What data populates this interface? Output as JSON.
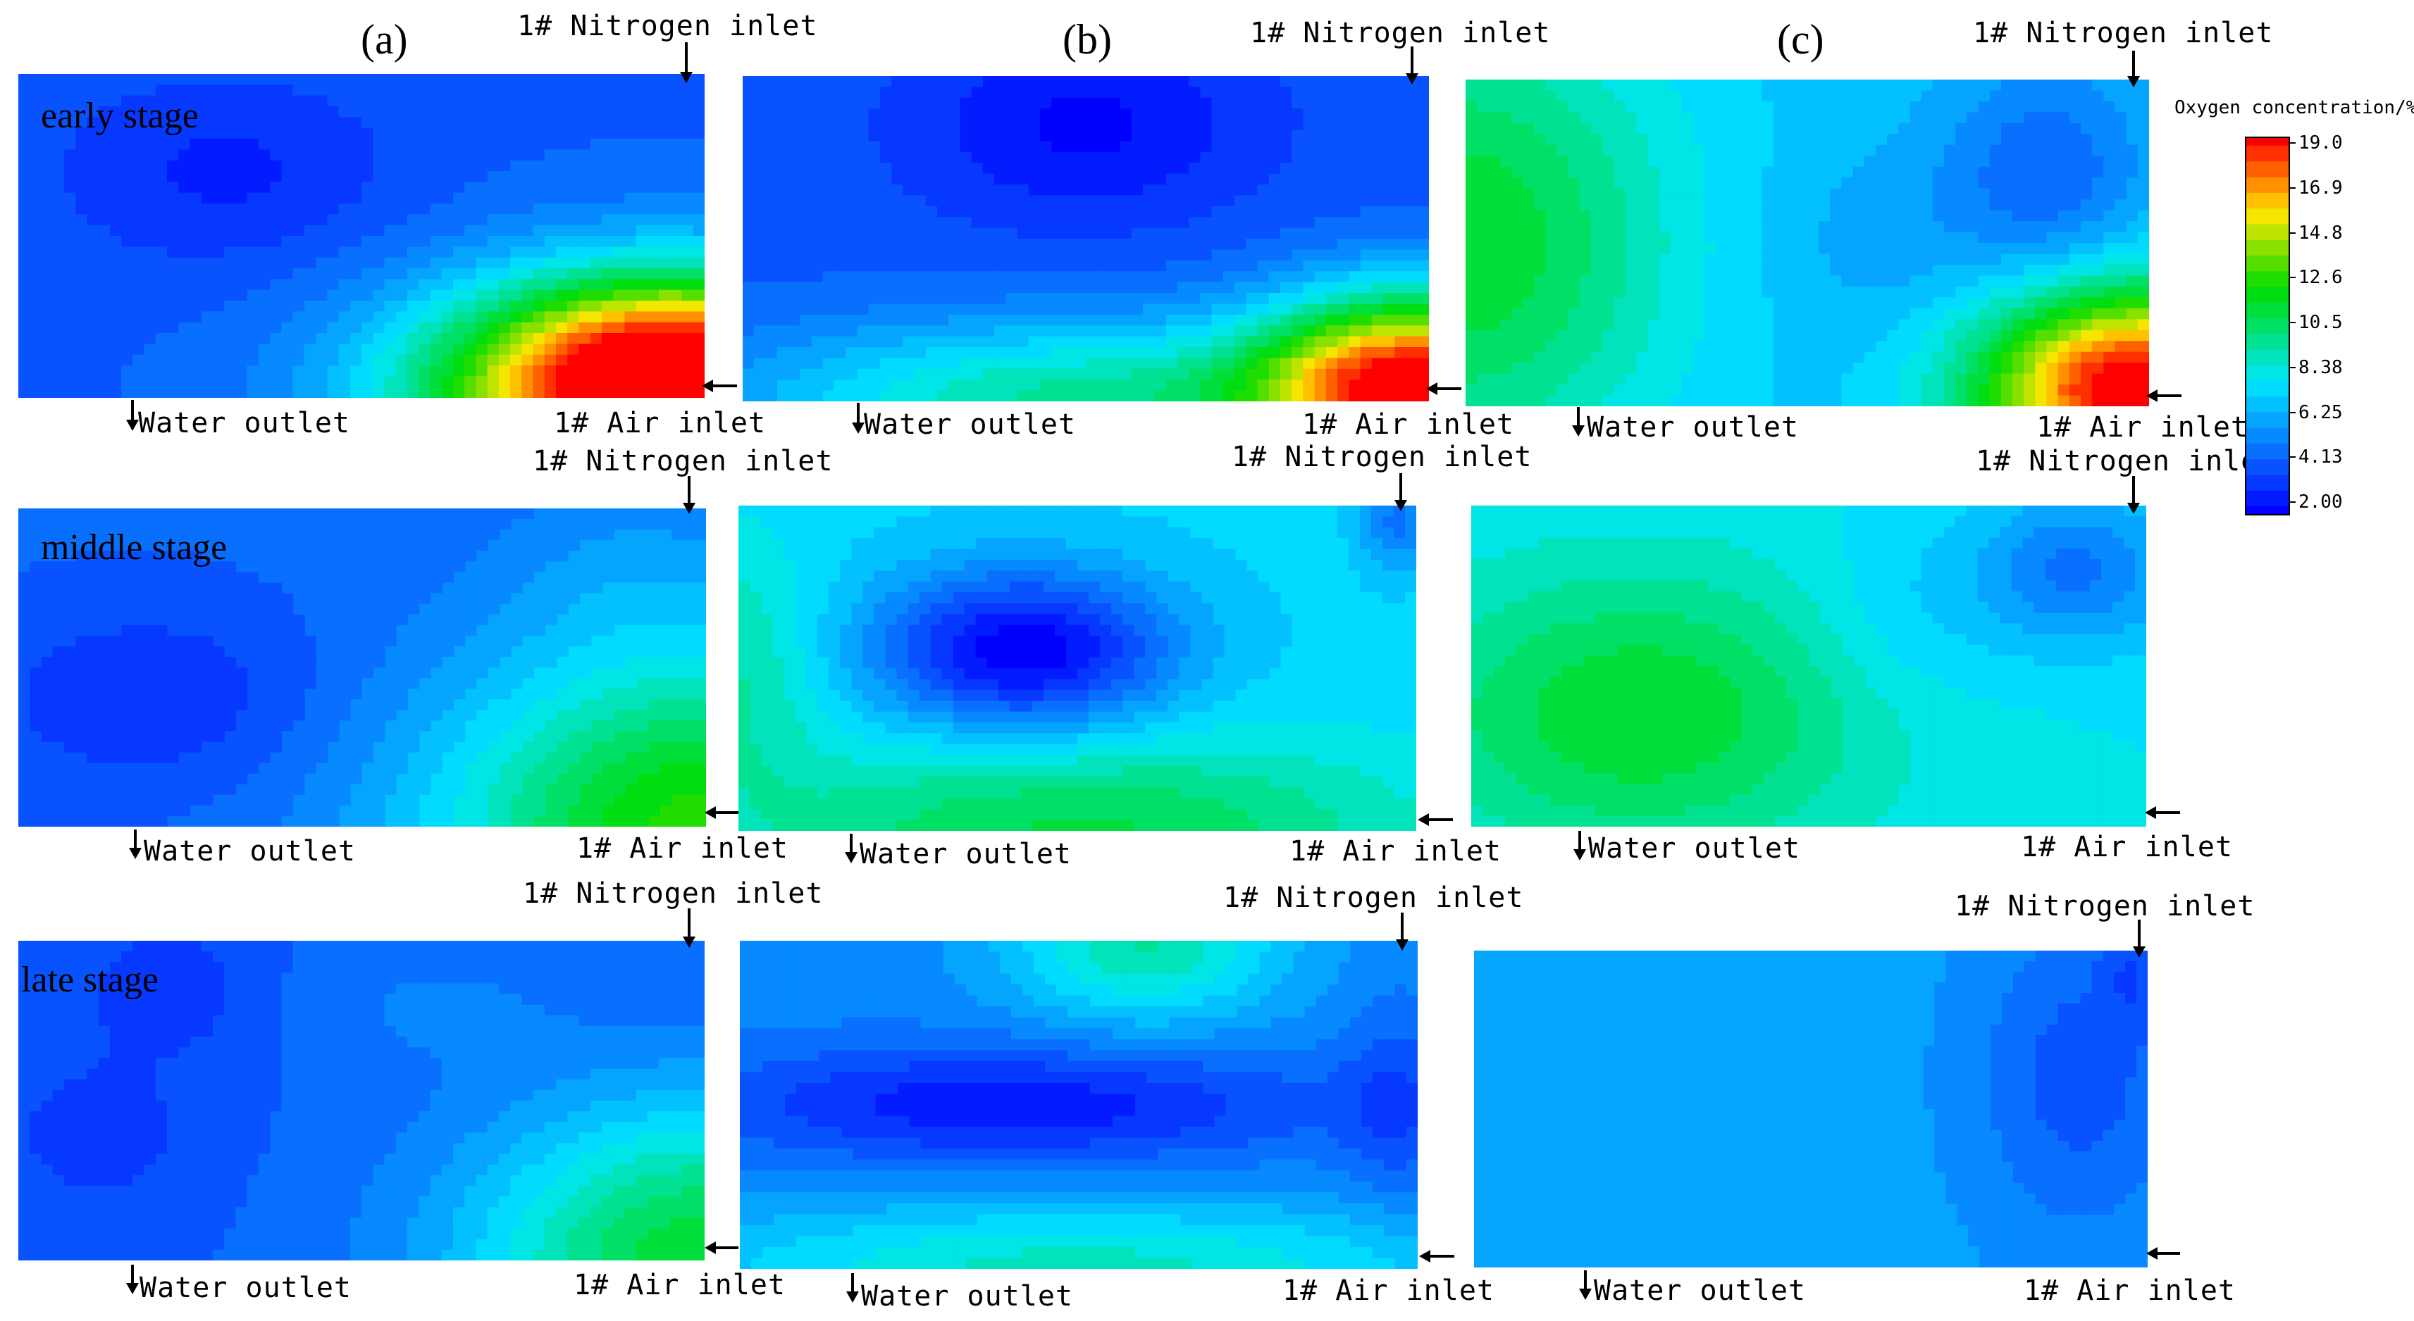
{
  "columns": [
    "(a)",
    "(b)",
    "(c)"
  ],
  "stages": [
    "early stage",
    "middle stage",
    "late stage"
  ],
  "labels": {
    "nitrogen": "1# Nitrogen inlet",
    "water": "Water outlet",
    "air": "1# Air inlet"
  },
  "chart_data": {
    "type": "heatmap",
    "colorbar": {
      "title": "Oxygen concentration/%",
      "ticks": [
        "19.0",
        "16.9",
        "14.8",
        "12.6",
        "10.5",
        "8.38",
        "6.25",
        "4.13",
        "2.00"
      ],
      "range": [
        2.0,
        19.0
      ],
      "colors": [
        "#0000ff",
        "#0a64ff",
        "#00e6ff",
        "#00dc00",
        "#ffe600",
        "#ff0000"
      ]
    },
    "panels": [
      {
        "column": "(a)",
        "stage": "early stage",
        "base": 4.4,
        "blobs": [
          [
            0.98,
            0.95,
            16.0,
            0.28,
            0.32
          ],
          [
            0.75,
            1.0,
            5.0,
            0.3,
            0.35
          ],
          [
            0.3,
            0.3,
            -1.5,
            0.25,
            0.3
          ]
        ]
      },
      {
        "column": "(b)",
        "stage": "early stage",
        "base": 4.2,
        "blobs": [
          [
            0.98,
            0.95,
            14.0,
            0.22,
            0.28
          ],
          [
            0.5,
            1.0,
            5.5,
            0.5,
            0.25
          ],
          [
            0.5,
            0.15,
            -2.0,
            0.25,
            0.3
          ]
        ]
      },
      {
        "column": "(c)",
        "stage": "early stage",
        "base": 7.0,
        "blobs": [
          [
            0.0,
            0.5,
            4.5,
            0.3,
            0.7
          ],
          [
            0.98,
            0.95,
            13.0,
            0.22,
            0.3
          ],
          [
            0.85,
            0.3,
            -2.5,
            0.15,
            0.35
          ],
          [
            0.6,
            0.5,
            -0.8,
            0.15,
            0.3
          ]
        ]
      },
      {
        "column": "(a)",
        "stage": "middle stage",
        "base": 4.6,
        "blobs": [
          [
            1.0,
            1.0,
            8.0,
            0.4,
            0.55
          ],
          [
            0.2,
            0.6,
            -1.5,
            0.25,
            0.3
          ],
          [
            0.9,
            0.2,
            1.0,
            0.2,
            0.3
          ]
        ]
      },
      {
        "column": "(b)",
        "stage": "middle stage",
        "base": 7.5,
        "blobs": [
          [
            0.42,
            0.45,
            -5.8,
            0.22,
            0.25
          ],
          [
            0.5,
            1.0,
            3.5,
            0.5,
            0.3
          ],
          [
            0.0,
            0.5,
            2.0,
            0.12,
            0.4
          ],
          [
            0.97,
            0.05,
            -2.5,
            0.05,
            0.15
          ]
        ]
      },
      {
        "column": "(c)",
        "stage": "middle stage",
        "base": 8.0,
        "blobs": [
          [
            0.25,
            0.65,
            3.5,
            0.35,
            0.45
          ],
          [
            0.9,
            0.2,
            -3.0,
            0.15,
            0.25
          ],
          [
            0.65,
            0.35,
            -1.0,
            0.15,
            0.3
          ]
        ]
      },
      {
        "column": "(a)",
        "stage": "late stage",
        "base": 4.4,
        "blobs": [
          [
            1.0,
            1.0,
            7.0,
            0.35,
            0.5
          ],
          [
            0.22,
            0.15,
            -1.2,
            0.12,
            0.2
          ],
          [
            0.12,
            0.6,
            -1.0,
            0.15,
            0.25
          ],
          [
            0.6,
            0.2,
            0.8,
            0.2,
            0.2
          ]
        ]
      },
      {
        "column": "(b)",
        "stage": "late stage",
        "base": 5.5,
        "blobs": [
          [
            0.4,
            0.5,
            -3.0,
            0.45,
            0.18
          ],
          [
            0.5,
            1.0,
            3.5,
            0.6,
            0.2
          ],
          [
            0.6,
            0.0,
            4.0,
            0.2,
            0.25
          ],
          [
            0.97,
            0.5,
            -1.5,
            0.08,
            0.3
          ]
        ]
      },
      {
        "column": "(c)",
        "stage": "late stage",
        "base": 6.1,
        "blobs": [
          [
            0.9,
            0.4,
            -2.0,
            0.15,
            0.5
          ],
          [
            0.98,
            0.05,
            -1.5,
            0.05,
            0.2
          ]
        ]
      }
    ]
  }
}
